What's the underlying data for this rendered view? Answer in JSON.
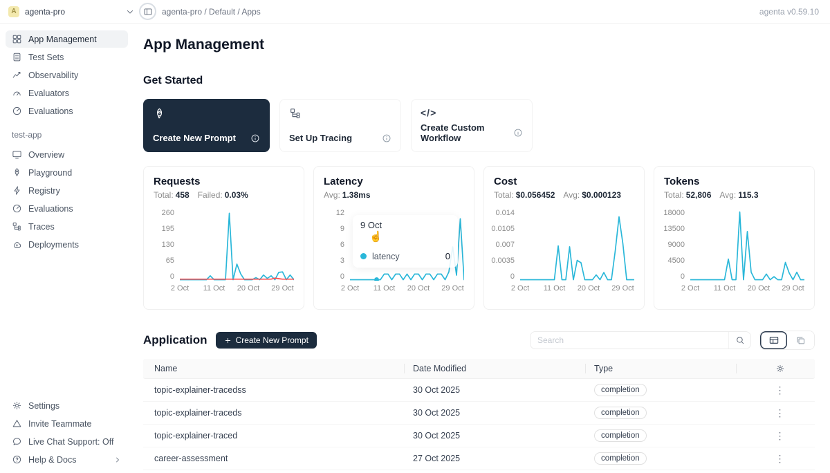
{
  "colors": {
    "accent": "#2ab7d9",
    "failed": "#ff4d4f",
    "dark": "#1c2c3e",
    "avatar_bg": "#f3e9ae"
  },
  "topbar": {
    "avatar_letter": "A",
    "workspace": "agenta-pro",
    "breadcrumb": "agenta-pro / Default / Apps",
    "version": "agenta v0.59.10"
  },
  "sidebar": {
    "main_items": [
      {
        "label": "App Management"
      },
      {
        "label": "Test Sets"
      },
      {
        "label": "Observability"
      },
      {
        "label": "Evaluators"
      },
      {
        "label": "Evaluations"
      }
    ],
    "section_label": "test-app",
    "app_items": [
      {
        "label": "Overview"
      },
      {
        "label": "Playground"
      },
      {
        "label": "Registry"
      },
      {
        "label": "Evaluations"
      },
      {
        "label": "Traces"
      },
      {
        "label": "Deployments"
      }
    ],
    "bottom_items": [
      {
        "label": "Settings"
      },
      {
        "label": "Invite Teammate"
      },
      {
        "label": "Live Chat Support: Off"
      },
      {
        "label": "Help & Docs"
      }
    ]
  },
  "main": {
    "title": "App Management",
    "get_started": {
      "title": "Get Started",
      "cards": [
        {
          "label": "Create New Prompt"
        },
        {
          "label": "Set Up Tracing"
        },
        {
          "label": "Create Custom Workflow"
        }
      ]
    },
    "application": {
      "title": "Application",
      "create_button": "Create New Prompt",
      "search_placeholder": "Search",
      "table": {
        "columns": [
          "Name",
          "Date Modified",
          "Type"
        ],
        "rows": [
          {
            "name": "topic-explainer-tracedss",
            "date": "30 Oct 2025",
            "type": "completion"
          },
          {
            "name": "topic-explainer-traceds",
            "date": "30 Oct 2025",
            "type": "completion"
          },
          {
            "name": "topic-explainer-traced",
            "date": "30 Oct 2025",
            "type": "completion"
          },
          {
            "name": "career-assessment",
            "date": "27 Oct 2025",
            "type": "completion"
          }
        ]
      }
    }
  },
  "tooltip": {
    "date": "9 Oct",
    "legend": "latency",
    "value": "0"
  },
  "chart_data": [
    {
      "type": "line",
      "title": "Requests",
      "stats": [
        {
          "label": "Total:",
          "value": "458"
        },
        {
          "label": "Failed:",
          "value": "0.03%"
        }
      ],
      "ylim": [
        0,
        260
      ],
      "yticks": [
        "260",
        "195",
        "130",
        "65",
        "0"
      ],
      "xticks": [
        "2 Oct",
        "11 Oct",
        "20 Oct",
        "29 Oct"
      ],
      "xtick_pos": [
        0,
        9,
        18,
        27
      ],
      "series": [
        {
          "name": "requests",
          "color": "#2ab7d9",
          "values": [
            0,
            0,
            0,
            0,
            0,
            0,
            0,
            0,
            15,
            0,
            0,
            0,
            0,
            255,
            0,
            60,
            22,
            0,
            0,
            0,
            8,
            0,
            18,
            5,
            15,
            0,
            28,
            30,
            0,
            18,
            0
          ]
        },
        {
          "name": "failed",
          "color": "#ff4d4f",
          "values": [
            2,
            2,
            2,
            2,
            2,
            2,
            2,
            2,
            2,
            2,
            2,
            2,
            2,
            2,
            2,
            2,
            2,
            2,
            2,
            2,
            2,
            2,
            2,
            2,
            2,
            6,
            4,
            2,
            2,
            2,
            2
          ]
        }
      ]
    },
    {
      "type": "line",
      "title": "Latency",
      "stats": [
        {
          "label": "Avg:",
          "value": "1.38ms"
        }
      ],
      "ylim": [
        0,
        12
      ],
      "yticks": [
        "12",
        "9",
        "6",
        "3",
        "0"
      ],
      "xticks": [
        "2 Oct",
        "11 Oct",
        "20 Oct",
        "29 Oct"
      ],
      "xtick_pos": [
        0,
        9,
        18,
        27
      ],
      "highlight": {
        "index": 7,
        "value": 0
      },
      "series": [
        {
          "name": "latency",
          "color": "#2ab7d9",
          "values": [
            0,
            0,
            0,
            0,
            0,
            0,
            0,
            0,
            0,
            1,
            1,
            0,
            1,
            1,
            0,
            1,
            0,
            1,
            1,
            0,
            1,
            1,
            0,
            1,
            1,
            0,
            1.4,
            5.8,
            0.8,
            10.8,
            0
          ]
        }
      ]
    },
    {
      "type": "line",
      "title": "Cost",
      "stats": [
        {
          "label": "Total:",
          "value": "$0.056452"
        },
        {
          "label": "Avg:",
          "value": "$0.000123"
        }
      ],
      "ylim": [
        0,
        0.014
      ],
      "yticks": [
        "0.014",
        "0.0105",
        "0.007",
        "0.0035",
        "0"
      ],
      "xticks": [
        "2 Oct",
        "11 Oct",
        "20 Oct",
        "29 Oct"
      ],
      "xtick_pos": [
        0,
        9,
        18,
        27
      ],
      "series": [
        {
          "name": "cost",
          "color": "#2ab7d9",
          "values": [
            0,
            0,
            0,
            0,
            0,
            0,
            0,
            0,
            0,
            0,
            0.007,
            0,
            0,
            0.0068,
            0,
            0.004,
            0.0035,
            0,
            0,
            0,
            0.001,
            0,
            0.0015,
            0,
            0,
            0.006,
            0.013,
            0.0075,
            0,
            0,
            0
          ]
        }
      ]
    },
    {
      "type": "line",
      "title": "Tokens",
      "stats": [
        {
          "label": "Total:",
          "value": "52,806"
        },
        {
          "label": "Avg:",
          "value": "115.3"
        }
      ],
      "ylim": [
        0,
        18000
      ],
      "yticks": [
        "18000",
        "13500",
        "9000",
        "4500",
        "0"
      ],
      "xticks": [
        "2 Oct",
        "11 Oct",
        "20 Oct",
        "29 Oct"
      ],
      "xtick_pos": [
        0,
        9,
        18,
        27
      ],
      "series": [
        {
          "name": "tokens",
          "color": "#2ab7d9",
          "values": [
            0,
            0,
            0,
            0,
            0,
            0,
            0,
            0,
            0,
            0,
            5500,
            0,
            0,
            18000,
            0,
            12800,
            2000,
            0,
            0,
            0,
            1500,
            0,
            800,
            0,
            0,
            4600,
            1800,
            0,
            2000,
            0,
            0
          ]
        }
      ]
    }
  ]
}
